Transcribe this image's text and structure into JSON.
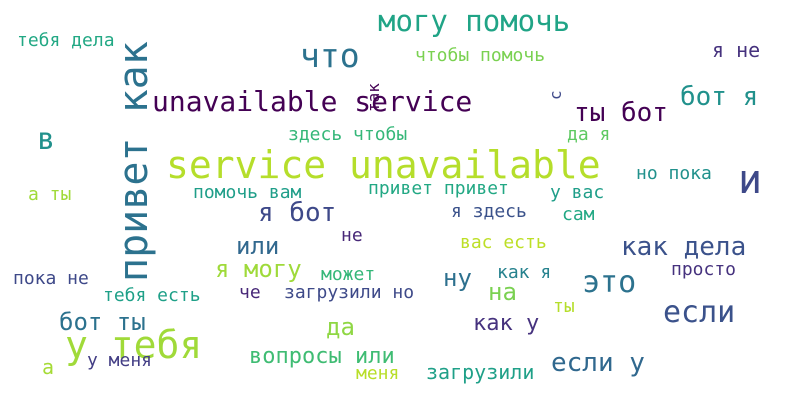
{
  "words": [
    {
      "text": "service unavailable",
      "color": "#b5de2b"
    },
    {
      "text": "привет как",
      "color": "#2c728e"
    },
    {
      "text": "у тебя",
      "color": "#a0da39"
    },
    {
      "text": "могу помочь",
      "color": "#20a486"
    },
    {
      "text": "что",
      "color": "#2c728e"
    },
    {
      "text": "unavailable service",
      "color": "#440154"
    },
    {
      "text": "и",
      "color": "#3e4989"
    },
    {
      "text": "бот я",
      "color": "#21918c"
    },
    {
      "text": "ты бот",
      "color": "#440154"
    },
    {
      "text": "я бот",
      "color": "#3e4989"
    },
    {
      "text": "как дела",
      "color": "#3b528b"
    },
    {
      "text": "это",
      "color": "#2c728e"
    },
    {
      "text": "если",
      "color": "#3b528b"
    },
    {
      "text": "если у",
      "color": "#30688e"
    },
    {
      "text": "в",
      "color": "#21918c"
    },
    {
      "text": "тебя дела",
      "color": "#22a884"
    },
    {
      "text": "я не",
      "color": "#46327e"
    },
    {
      "text": "чтобы помочь",
      "color": "#7ad151"
    },
    {
      "text": "так",
      "color": "#440154"
    },
    {
      "text": "с",
      "color": "#3e4989"
    },
    {
      "text": "да я",
      "color": "#5ec962"
    },
    {
      "text": "здесь чтобы",
      "color": "#35b779"
    },
    {
      "text": "а ты",
      "color": "#a0da39"
    },
    {
      "text": "помочь вам",
      "color": "#1f9e89"
    },
    {
      "text": "привет привет",
      "color": "#22a884"
    },
    {
      "text": "у вас",
      "color": "#1f9e89"
    },
    {
      "text": "но пока",
      "color": "#21918c"
    },
    {
      "text": "я здесь",
      "color": "#3b528b"
    },
    {
      "text": "сам",
      "color": "#22a884"
    },
    {
      "text": "или",
      "color": "#31688e"
    },
    {
      "text": "не",
      "color": "#482878"
    },
    {
      "text": "вас есть",
      "color": "#bddf26"
    },
    {
      "text": "я могу",
      "color": "#9fda3a"
    },
    {
      "text": "может",
      "color": "#35b779"
    },
    {
      "text": "ну",
      "color": "#2d708e"
    },
    {
      "text": "как я",
      "color": "#26828e"
    },
    {
      "text": "просто",
      "color": "#46327e"
    },
    {
      "text": "пока не",
      "color": "#3e4989"
    },
    {
      "text": "тебя есть",
      "color": "#1fa088"
    },
    {
      "text": "че",
      "color": "#482878"
    },
    {
      "text": "загрузили но",
      "color": "#3e4a89"
    },
    {
      "text": "на",
      "color": "#7ad151"
    },
    {
      "text": "ты",
      "color": "#b5de2b"
    },
    {
      "text": "бот ты",
      "color": "#2c728e"
    },
    {
      "text": "да",
      "color": "#8fd744"
    },
    {
      "text": "как у",
      "color": "#46327e"
    },
    {
      "text": "а",
      "color": "#a5db36"
    },
    {
      "text": "у меня",
      "color": "#433e85"
    },
    {
      "text": "вопросы или",
      "color": "#3fbc73"
    },
    {
      "text": "меня",
      "color": "#b8de29"
    },
    {
      "text": "загрузили",
      "color": "#1fa088"
    }
  ]
}
